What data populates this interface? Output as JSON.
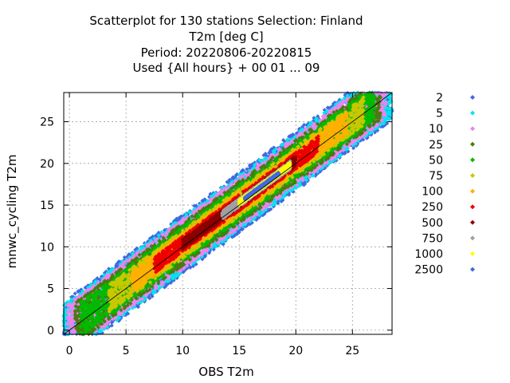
{
  "chart_data": {
    "type": "scatter",
    "title_lines": [
      "Scatterplot for  130 stations Selection: Finland",
      "T2m [deg C]",
      "Period: 20220806-20220815",
      "Used {All hours} + 00 01 ... 09"
    ],
    "xlabel": "OBS T2m",
    "ylabel": "mnwc_cycling T2m",
    "xlim": [
      -0.5,
      28.5
    ],
    "ylim": [
      -0.5,
      28.5
    ],
    "xticks": [
      0,
      5,
      10,
      15,
      20,
      25
    ],
    "yticks": [
      0,
      5,
      10,
      15,
      20,
      25
    ],
    "grid": true,
    "diagonal_line": true,
    "legend_position": "right",
    "legend": [
      {
        "label": "2",
        "color": "#4169e1"
      },
      {
        "label": "5",
        "color": "#00e5ee"
      },
      {
        "label": "10",
        "color": "#ee82ee"
      },
      {
        "label": "25",
        "color": "#4a7a10"
      },
      {
        "label": "50",
        "color": "#00bb00"
      },
      {
        "label": "75",
        "color": "#c8c800"
      },
      {
        "label": "100",
        "color": "#ffb000"
      },
      {
        "label": "250",
        "color": "#ee0000"
      },
      {
        "label": "500",
        "color": "#8b0000"
      },
      {
        "label": "750",
        "color": "#a0a0a0"
      },
      {
        "label": "1000",
        "color": "#ffff00"
      },
      {
        "label": "2500",
        "color": "#4169e1"
      }
    ],
    "density_bands": [
      {
        "class": "2",
        "x_range": [
          -0.5,
          28.5
        ],
        "spread": 3.6
      },
      {
        "class": "5",
        "x_range": [
          -0.5,
          28.5
        ],
        "spread": 3.3
      },
      {
        "class": "10",
        "x_range": [
          -0.2,
          28.0
        ],
        "spread": 3.0
      },
      {
        "class": "25",
        "x_range": [
          0.5,
          27.5
        ],
        "spread": 2.55
      },
      {
        "class": "50",
        "x_range": [
          1.0,
          27.0
        ],
        "spread": 2.1
      },
      {
        "class": "75",
        "x_range": [
          3.5,
          26.0
        ],
        "spread": 1.7
      },
      {
        "class": "100",
        "x_range": [
          5.5,
          24.5
        ],
        "spread": 1.35
      },
      {
        "class": "250",
        "x_range": [
          7.5,
          22.0
        ],
        "spread": 1.0
      },
      {
        "class": "500",
        "x_range": [
          10.0,
          20.0
        ],
        "spread": 0.6
      },
      {
        "class": "750",
        "x_range": [
          13.5,
          19.5
        ],
        "spread": 0.5
      },
      {
        "class": "1000",
        "x_range": [
          15.0,
          19.5
        ],
        "spread": 0.32
      },
      {
        "class": "2500",
        "x_range": [
          15.5,
          18.5
        ],
        "spread": 0.15
      }
    ]
  }
}
